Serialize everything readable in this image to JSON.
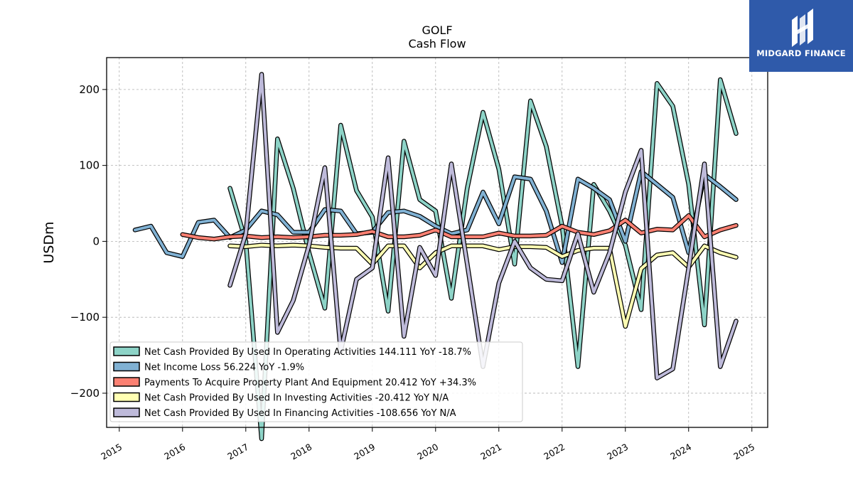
{
  "brand": {
    "name": "MIDGARD FINANCE",
    "color": "#2f5aaa"
  },
  "chart_data": {
    "type": "line",
    "title": "GOLF",
    "subtitle": "Cash Flow",
    "xlabel": "",
    "ylabel": "USDm",
    "xlim": [
      2014.8,
      2025.25
    ],
    "ylim": [
      -245,
      242
    ],
    "x_ticks": [
      "2015",
      "2016",
      "2017",
      "2018",
      "2019",
      "2020",
      "2021",
      "2022",
      "2023",
      "2024",
      "2025"
    ],
    "y_ticks": [
      -200,
      -100,
      0,
      100,
      200
    ],
    "y_tick_labels": [
      "−200",
      "−100",
      "0",
      "100",
      "200"
    ],
    "grid": true,
    "legend_position": "lower-left",
    "series": [
      {
        "name": "Net Cash Provided By Used In Operating Activities",
        "legend_label": "Net Cash Provided By Used In Operating Activities  144.111 YoY -18.7%",
        "color": "#8dd3c7",
        "points": [
          [
            2016.75,
            70
          ],
          [
            2017.0,
            0
          ],
          [
            2017.25,
            -260
          ],
          [
            2017.5,
            135
          ],
          [
            2017.75,
            70
          ],
          [
            2018.0,
            -15
          ],
          [
            2018.25,
            -88
          ],
          [
            2018.5,
            153
          ],
          [
            2018.75,
            67
          ],
          [
            2019.0,
            32
          ],
          [
            2019.25,
            -92
          ],
          [
            2019.5,
            132
          ],
          [
            2019.75,
            55
          ],
          [
            2020.0,
            40
          ],
          [
            2020.25,
            -75
          ],
          [
            2020.5,
            70
          ],
          [
            2020.75,
            170
          ],
          [
            2021.0,
            95
          ],
          [
            2021.25,
            -30
          ],
          [
            2021.5,
            185
          ],
          [
            2021.75,
            125
          ],
          [
            2022.0,
            20
          ],
          [
            2022.25,
            -165
          ],
          [
            2022.5,
            75
          ],
          [
            2022.75,
            40
          ],
          [
            2023.0,
            -5
          ],
          [
            2023.25,
            -90
          ],
          [
            2023.5,
            208
          ],
          [
            2023.75,
            178
          ],
          [
            2024.0,
            75
          ],
          [
            2024.25,
            -110
          ],
          [
            2024.5,
            213
          ],
          [
            2024.75,
            142
          ]
        ]
      },
      {
        "name": "Net Income Loss",
        "legend_label": "Net Income Loss  56.224 YoY -1.9%",
        "color": "#80b1d3",
        "points": [
          [
            2015.25,
            15
          ],
          [
            2015.5,
            20
          ],
          [
            2015.75,
            -15
          ],
          [
            2016.0,
            -20
          ],
          [
            2016.25,
            25
          ],
          [
            2016.5,
            28
          ],
          [
            2016.75,
            5
          ],
          [
            2017.0,
            15
          ],
          [
            2017.25,
            40
          ],
          [
            2017.5,
            35
          ],
          [
            2017.75,
            12
          ],
          [
            2018.0,
            12
          ],
          [
            2018.25,
            42
          ],
          [
            2018.5,
            40
          ],
          [
            2018.75,
            10
          ],
          [
            2019.0,
            12
          ],
          [
            2019.25,
            38
          ],
          [
            2019.5,
            40
          ],
          [
            2019.75,
            33
          ],
          [
            2020.0,
            20
          ],
          [
            2020.25,
            10
          ],
          [
            2020.5,
            15
          ],
          [
            2020.75,
            65
          ],
          [
            2021.0,
            23
          ],
          [
            2021.25,
            85
          ],
          [
            2021.5,
            82
          ],
          [
            2021.75,
            40
          ],
          [
            2022.0,
            -28
          ],
          [
            2022.25,
            82
          ],
          [
            2022.5,
            70
          ],
          [
            2022.75,
            55
          ],
          [
            2023.0,
            0
          ],
          [
            2023.25,
            92
          ],
          [
            2023.5,
            75
          ],
          [
            2023.75,
            58
          ],
          [
            2024.0,
            -15
          ],
          [
            2024.25,
            88
          ],
          [
            2024.5,
            72
          ],
          [
            2024.75,
            55
          ]
        ]
      },
      {
        "name": "Payments To Acquire Property Plant And Equipment",
        "legend_label": "Payments To Acquire Property Plant And Equipment  20.412 YoY +34.3%",
        "color": "#fb8072",
        "points": [
          [
            2016.0,
            9
          ],
          [
            2016.25,
            5
          ],
          [
            2016.5,
            3
          ],
          [
            2016.75,
            6
          ],
          [
            2017.0,
            7
          ],
          [
            2017.25,
            5
          ],
          [
            2017.5,
            6
          ],
          [
            2017.75,
            5
          ],
          [
            2018.0,
            6
          ],
          [
            2018.25,
            8
          ],
          [
            2018.5,
            8
          ],
          [
            2018.75,
            9
          ],
          [
            2019.0,
            13
          ],
          [
            2019.25,
            6
          ],
          [
            2019.5,
            6
          ],
          [
            2019.75,
            8
          ],
          [
            2020.0,
            15
          ],
          [
            2020.25,
            6
          ],
          [
            2020.5,
            6
          ],
          [
            2020.75,
            6
          ],
          [
            2021.0,
            11
          ],
          [
            2021.25,
            7
          ],
          [
            2021.5,
            7
          ],
          [
            2021.75,
            8
          ],
          [
            2022.0,
            20
          ],
          [
            2022.25,
            12
          ],
          [
            2022.5,
            9
          ],
          [
            2022.75,
            14
          ],
          [
            2023.0,
            28
          ],
          [
            2023.25,
            11
          ],
          [
            2023.5,
            16
          ],
          [
            2023.75,
            15
          ],
          [
            2024.0,
            34
          ],
          [
            2024.25,
            6
          ],
          [
            2024.5,
            15
          ],
          [
            2024.75,
            21
          ]
        ]
      },
      {
        "name": "Net Cash Provided By Used In Investing Activities",
        "legend_label": "Net Cash Provided By Used In Investing Activities  -20.412 YoY N/A",
        "color": "#ffffb3",
        "points": [
          [
            2016.75,
            -6
          ],
          [
            2017.0,
            -7
          ],
          [
            2017.25,
            -5
          ],
          [
            2017.5,
            -6
          ],
          [
            2017.75,
            -5
          ],
          [
            2018.0,
            -6
          ],
          [
            2018.25,
            -8
          ],
          [
            2018.5,
            -9
          ],
          [
            2018.75,
            -9
          ],
          [
            2019.0,
            -30
          ],
          [
            2019.25,
            -6
          ],
          [
            2019.5,
            -6
          ],
          [
            2019.75,
            -35
          ],
          [
            2020.0,
            -15
          ],
          [
            2020.25,
            -6
          ],
          [
            2020.5,
            -6
          ],
          [
            2020.75,
            -6
          ],
          [
            2021.0,
            -11
          ],
          [
            2021.25,
            -7
          ],
          [
            2021.5,
            -7
          ],
          [
            2021.75,
            -8
          ],
          [
            2022.0,
            -20
          ],
          [
            2022.25,
            -12
          ],
          [
            2022.5,
            -9
          ],
          [
            2022.75,
            -9
          ],
          [
            2023.0,
            -112
          ],
          [
            2023.25,
            -36
          ],
          [
            2023.5,
            -18
          ],
          [
            2023.75,
            -15
          ],
          [
            2024.0,
            -34
          ],
          [
            2024.25,
            -6
          ],
          [
            2024.5,
            -15
          ],
          [
            2024.75,
            -21
          ]
        ]
      },
      {
        "name": "Net Cash Provided By Used In Financing Activities",
        "legend_label": "Net Cash Provided By Used In Financing Activities  -108.656 YoY N/A",
        "color": "#bebada",
        "points": [
          [
            2016.75,
            -58
          ],
          [
            2017.0,
            10
          ],
          [
            2017.25,
            220
          ],
          [
            2017.5,
            -120
          ],
          [
            2017.75,
            -78
          ],
          [
            2018.0,
            -5
          ],
          [
            2018.25,
            97
          ],
          [
            2018.5,
            -145
          ],
          [
            2018.75,
            -50
          ],
          [
            2019.0,
            -35
          ],
          [
            2019.25,
            110
          ],
          [
            2019.5,
            -125
          ],
          [
            2019.75,
            -8
          ],
          [
            2020.0,
            -45
          ],
          [
            2020.25,
            102
          ],
          [
            2020.5,
            -30
          ],
          [
            2020.75,
            -165
          ],
          [
            2021.0,
            -55
          ],
          [
            2021.25,
            0
          ],
          [
            2021.5,
            -35
          ],
          [
            2021.75,
            -50
          ],
          [
            2022.0,
            -52
          ],
          [
            2022.25,
            10
          ],
          [
            2022.5,
            -67
          ],
          [
            2022.75,
            -15
          ],
          [
            2023.0,
            65
          ],
          [
            2023.25,
            120
          ],
          [
            2023.5,
            -180
          ],
          [
            2023.75,
            -168
          ],
          [
            2024.0,
            -35
          ],
          [
            2024.25,
            102
          ],
          [
            2024.5,
            -165
          ],
          [
            2024.75,
            -105
          ]
        ]
      }
    ]
  }
}
